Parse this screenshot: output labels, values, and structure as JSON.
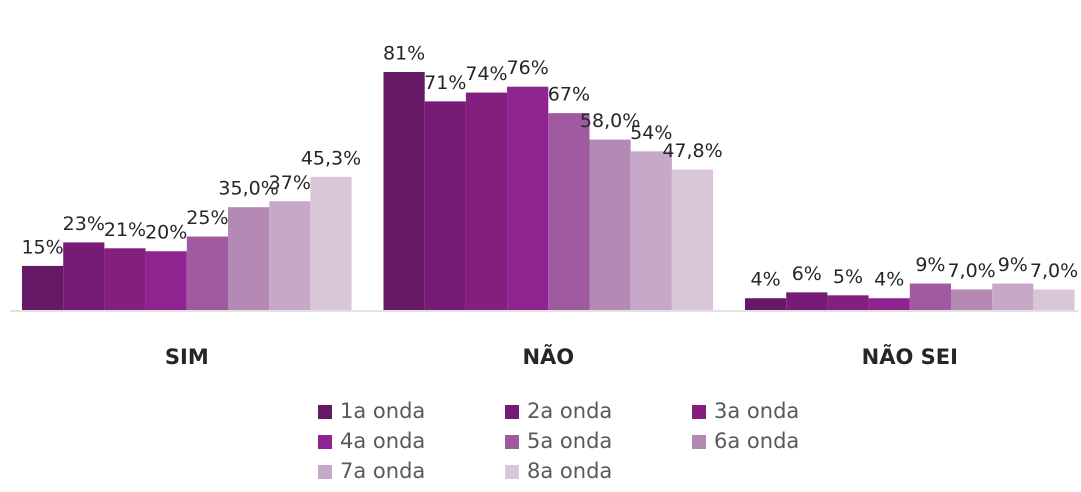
{
  "chart_data": {
    "type": "bar",
    "categories": [
      "SIM",
      "NÃO",
      "NÃO SEI"
    ],
    "series": [
      {
        "name": "1a onda",
        "color": "#651865",
        "values": [
          15,
          81,
          4
        ],
        "value_labels": [
          "15%",
          "81%",
          "4%"
        ]
      },
      {
        "name": "2a onda",
        "color": "#761c76",
        "values": [
          23,
          71,
          6
        ],
        "value_labels": [
          "23%",
          "71%",
          "6%"
        ]
      },
      {
        "name": "3a onda",
        "color": "#83207f",
        "values": [
          21,
          74,
          5
        ],
        "value_labels": [
          "21%",
          "74%",
          "5%"
        ]
      },
      {
        "name": "4a onda",
        "color": "#8f2390",
        "values": [
          20,
          76,
          4
        ],
        "value_labels": [
          "20%",
          "76%",
          "4%"
        ]
      },
      {
        "name": "5a onda",
        "color": "#a05aa0",
        "values": [
          25,
          67,
          9
        ],
        "value_labels": [
          "25%",
          "67%",
          "9%"
        ]
      },
      {
        "name": "6a onda",
        "color": "#b48ab5",
        "values": [
          35.0,
          58.0,
          7.0
        ],
        "value_labels": [
          "35,0%",
          "58,0%",
          "7,0%"
        ]
      },
      {
        "name": "7a onda",
        "color": "#c6a9c8",
        "values": [
          37,
          54,
          9
        ],
        "value_labels": [
          "37%",
          "54%",
          "9%"
        ]
      },
      {
        "name": "8a onda",
        "color": "#d9c6d9",
        "values": [
          45.3,
          47.8,
          7.0
        ],
        "value_labels": [
          "45,3%",
          "47,8%",
          "7,0%"
        ]
      }
    ]
  }
}
